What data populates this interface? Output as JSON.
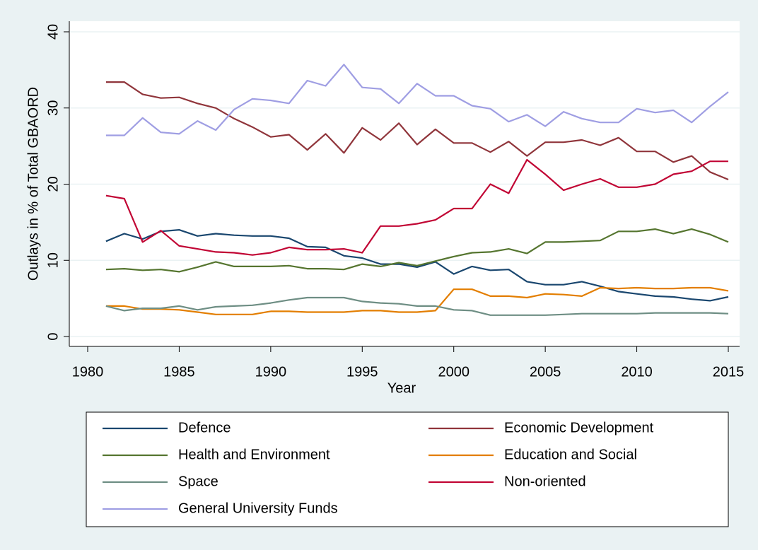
{
  "chart_data": {
    "type": "line",
    "x_label": "Year",
    "y_label": "Outlays in % of Total GBAORD",
    "x": [
      1981,
      1982,
      1983,
      1984,
      1985,
      1986,
      1987,
      1988,
      1989,
      1990,
      1991,
      1992,
      1993,
      1994,
      1995,
      1996,
      1997,
      1998,
      1999,
      2000,
      2001,
      2002,
      2003,
      2004,
      2005,
      2006,
      2007,
      2008,
      2009,
      2010,
      2011,
      2012,
      2013,
      2014,
      2015
    ],
    "xlim": [
      1980,
      2015
    ],
    "xticks": [
      1980,
      1985,
      1990,
      1995,
      2000,
      2005,
      2010,
      2015
    ],
    "ylim": [
      0,
      40
    ],
    "yticks": [
      0,
      10,
      20,
      30,
      40
    ],
    "grid": true,
    "series": [
      {
        "name": "Defence",
        "color": "#1a476f",
        "values": [
          12.5,
          13.5,
          12.8,
          13.8,
          14.0,
          13.2,
          13.5,
          13.3,
          13.2,
          13.2,
          12.9,
          11.8,
          11.7,
          10.6,
          10.3,
          9.5,
          9.5,
          9.1,
          9.8,
          8.2,
          9.2,
          8.7,
          8.8,
          7.2,
          6.8,
          6.8,
          7.2,
          6.6,
          5.9,
          5.6,
          5.3,
          5.2,
          4.9,
          4.7,
          5.2
        ]
      },
      {
        "name": "Economic Development",
        "color": "#90353b",
        "values": [
          33.4,
          33.4,
          31.8,
          31.3,
          31.4,
          30.6,
          30.0,
          28.6,
          27.5,
          26.2,
          26.5,
          24.5,
          26.6,
          24.1,
          27.4,
          25.8,
          28.0,
          25.2,
          27.2,
          25.4,
          25.4,
          24.2,
          25.6,
          23.7,
          25.5,
          25.5,
          25.8,
          25.1,
          26.1,
          24.3,
          24.3,
          22.9,
          23.7,
          21.6,
          20.6
        ]
      },
      {
        "name": "Health and Environment",
        "color": "#55752f",
        "values": [
          8.8,
          8.9,
          8.7,
          8.8,
          8.5,
          9.1,
          9.8,
          9.2,
          9.2,
          9.2,
          9.3,
          8.9,
          8.9,
          8.8,
          9.5,
          9.2,
          9.7,
          9.3,
          9.9,
          10.5,
          11.0,
          11.1,
          11.5,
          10.9,
          12.4,
          12.4,
          12.5,
          12.6,
          13.8,
          13.8,
          14.1,
          13.5,
          14.1,
          13.4,
          12.4
        ]
      },
      {
        "name": "Education and Social",
        "color": "#e37e00",
        "values": [
          4.0,
          4.0,
          3.6,
          3.6,
          3.5,
          3.2,
          2.9,
          2.9,
          2.9,
          3.3,
          3.3,
          3.2,
          3.2,
          3.2,
          3.4,
          3.4,
          3.2,
          3.2,
          3.4,
          6.2,
          6.2,
          5.3,
          5.3,
          5.1,
          5.6,
          5.5,
          5.3,
          6.4,
          6.3,
          6.4,
          6.3,
          6.3,
          6.4,
          6.4,
          6.0
        ]
      },
      {
        "name": "Space",
        "color": "#6e8e84",
        "values": [
          4.0,
          3.4,
          3.7,
          3.7,
          4.0,
          3.5,
          3.9,
          4.0,
          4.1,
          4.4,
          4.8,
          5.1,
          5.1,
          5.1,
          4.6,
          4.4,
          4.3,
          4.0,
          4.0,
          3.5,
          3.4,
          2.8,
          2.8,
          2.8,
          2.8,
          2.9,
          3.0,
          3.0,
          3.0,
          3.0,
          3.1,
          3.1,
          3.1,
          3.1,
          3.0
        ]
      },
      {
        "name": "Non-oriented",
        "color": "#c10534",
        "values": [
          18.5,
          18.1,
          12.4,
          13.9,
          11.9,
          11.5,
          11.1,
          11.0,
          10.7,
          11.0,
          11.7,
          11.4,
          11.4,
          11.5,
          11.0,
          14.5,
          14.5,
          14.8,
          15.3,
          16.8,
          16.8,
          20.0,
          18.8,
          23.2,
          21.3,
          19.2,
          20.0,
          20.7,
          19.6,
          19.6,
          20.0,
          21.3,
          21.7,
          23.0,
          23.0
        ]
      },
      {
        "name": "General University Funds",
        "color": "#9f9ee3",
        "values": [
          26.4,
          26.4,
          28.7,
          26.8,
          26.6,
          28.3,
          27.1,
          29.8,
          31.2,
          31.0,
          30.6,
          33.6,
          32.9,
          35.7,
          32.7,
          32.5,
          30.6,
          33.2,
          31.6,
          31.6,
          30.3,
          29.9,
          28.2,
          29.1,
          27.6,
          29.5,
          28.6,
          28.1,
          28.1,
          29.9,
          29.4,
          29.7,
          28.1,
          30.2,
          32.1
        ]
      }
    ]
  }
}
